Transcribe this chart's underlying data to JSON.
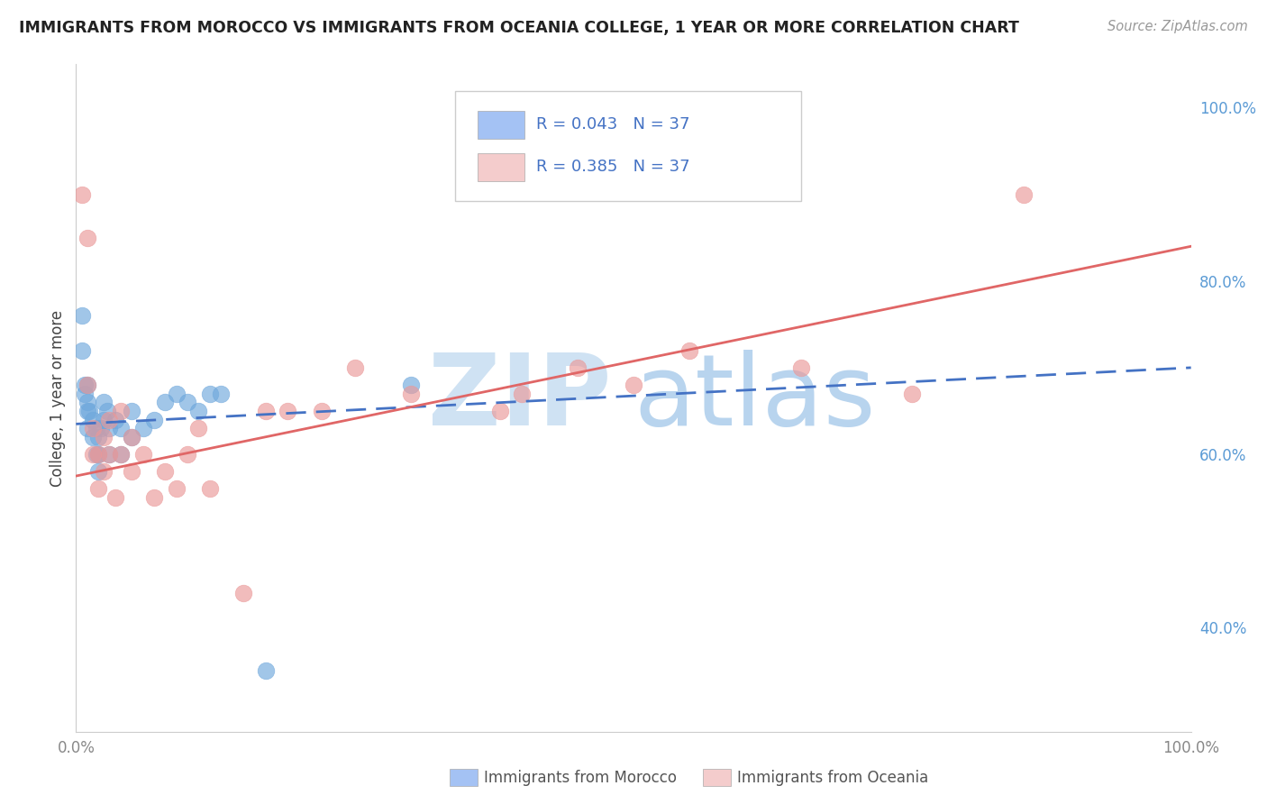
{
  "title": "IMMIGRANTS FROM MOROCCO VS IMMIGRANTS FROM OCEANIA COLLEGE, 1 YEAR OR MORE CORRELATION CHART",
  "source": "Source: ZipAtlas.com",
  "ylabel": "College, 1 year or more",
  "legend_label1": "Immigrants from Morocco",
  "legend_label2": "Immigrants from Oceania",
  "R1": 0.043,
  "R2": 0.385,
  "N1": 37,
  "N2": 37,
  "xlim": [
    0.0,
    1.0
  ],
  "ylim": [
    0.28,
    1.05
  ],
  "right_yticks": [
    0.4,
    0.6,
    0.8,
    1.0
  ],
  "right_ytick_labels": [
    "40.0%",
    "60.0%",
    "80.0%",
    "100.0%"
  ],
  "xtick_labels": [
    "0.0%",
    "100.0%"
  ],
  "xtick_values": [
    0.0,
    1.0
  ],
  "color_morocco": "#6fa8dc",
  "color_oceania": "#ea9999",
  "color_line_morocco": "#4472c4",
  "color_line_oceania": "#e06666",
  "color_legend_box_morocco": "#a4c2f4",
  "color_legend_box_oceania": "#f4cccc",
  "background_color": "#ffffff",
  "grid_color": "#cccccc",
  "watermark_zip_color": "#cfe2f3",
  "watermark_atlas_color": "#b8d4ee",
  "morocco_x": [
    0.005,
    0.005,
    0.008,
    0.008,
    0.01,
    0.01,
    0.01,
    0.01,
    0.012,
    0.015,
    0.015,
    0.018,
    0.018,
    0.02,
    0.02,
    0.02,
    0.022,
    0.025,
    0.025,
    0.028,
    0.03,
    0.03,
    0.035,
    0.04,
    0.04,
    0.05,
    0.05,
    0.06,
    0.07,
    0.08,
    0.09,
    0.1,
    0.11,
    0.12,
    0.13,
    0.17,
    0.3
  ],
  "morocco_y": [
    0.76,
    0.72,
    0.68,
    0.67,
    0.63,
    0.65,
    0.66,
    0.68,
    0.65,
    0.62,
    0.64,
    0.6,
    0.63,
    0.58,
    0.6,
    0.62,
    0.63,
    0.64,
    0.66,
    0.65,
    0.6,
    0.63,
    0.64,
    0.6,
    0.63,
    0.62,
    0.65,
    0.63,
    0.64,
    0.66,
    0.67,
    0.66,
    0.65,
    0.67,
    0.67,
    0.35,
    0.68
  ],
  "oceania_x": [
    0.005,
    0.01,
    0.01,
    0.015,
    0.015,
    0.02,
    0.02,
    0.025,
    0.025,
    0.03,
    0.03,
    0.035,
    0.04,
    0.04,
    0.05,
    0.05,
    0.06,
    0.07,
    0.08,
    0.09,
    0.1,
    0.11,
    0.12,
    0.15,
    0.17,
    0.19,
    0.22,
    0.25,
    0.3,
    0.38,
    0.4,
    0.45,
    0.5,
    0.55,
    0.65,
    0.75,
    0.85
  ],
  "oceania_y": [
    0.9,
    0.85,
    0.68,
    0.6,
    0.63,
    0.56,
    0.6,
    0.58,
    0.62,
    0.6,
    0.64,
    0.55,
    0.6,
    0.65,
    0.58,
    0.62,
    0.6,
    0.55,
    0.58,
    0.56,
    0.6,
    0.63,
    0.56,
    0.44,
    0.65,
    0.65,
    0.65,
    0.7,
    0.67,
    0.65,
    0.67,
    0.7,
    0.68,
    0.72,
    0.7,
    0.67,
    0.9
  ],
  "line_morocco_x0": 0.0,
  "line_morocco_y0": 0.635,
  "line_morocco_x1": 1.0,
  "line_morocco_y1": 0.7,
  "line_oceania_x0": 0.0,
  "line_oceania_y0": 0.575,
  "line_oceania_x1": 1.0,
  "line_oceania_y1": 0.84
}
